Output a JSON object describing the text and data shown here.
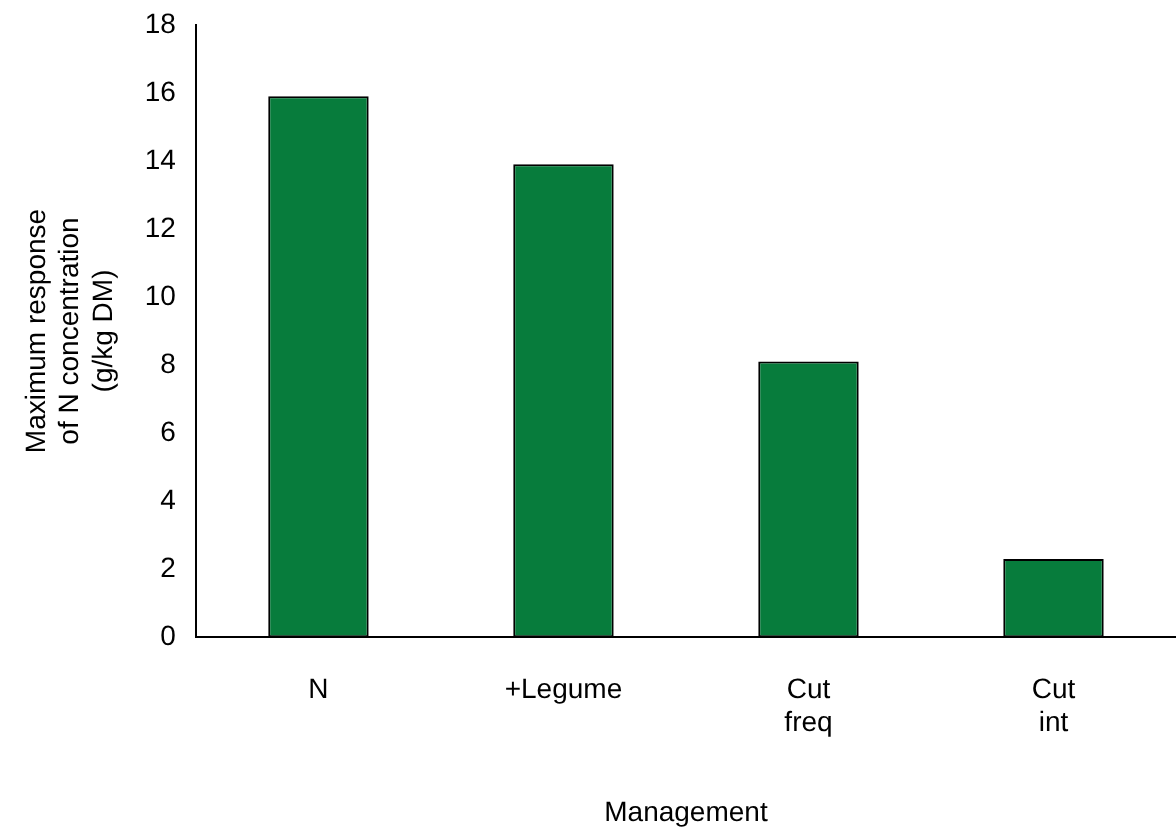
{
  "chart_data": {
    "type": "bar",
    "xlabel": "Management",
    "ylabel": "Maximum response\nof N concentration\n(g/kg DM)",
    "categories": [
      "N",
      "+Legume",
      "Cut\nfreq",
      "Cut\nint"
    ],
    "values": [
      15.9,
      13.9,
      8.1,
      2.3
    ],
    "color": "#077c3c",
    "ylim": [
      0,
      18
    ],
    "yticks": [
      0,
      2,
      4,
      6,
      8,
      10,
      12,
      14,
      16,
      18
    ],
    "grid": false,
    "legend": false
  }
}
